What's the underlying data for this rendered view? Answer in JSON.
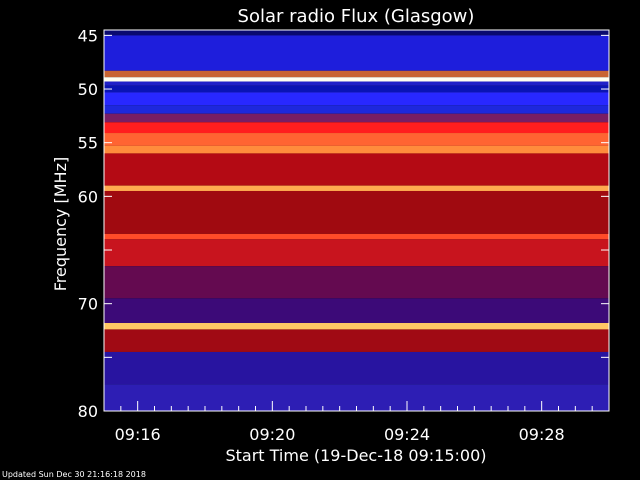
{
  "chart_data": {
    "type": "heatmap",
    "title": "Solar radio Flux (Glasgow)",
    "xlabel": "Start Time (19-Dec-18 09:15:00)",
    "ylabel": "Frequency [MHz]",
    "y_ticks": [
      45,
      50,
      55,
      60,
      65,
      70,
      75,
      80
    ],
    "y_tick_labels": [
      "45",
      "50",
      "55",
      "60",
      "",
      "70",
      "",
      "80"
    ],
    "ylim": [
      44.5,
      80
    ],
    "x_ticks": [
      "09:16",
      "09:20",
      "09:24",
      "09:28"
    ],
    "x_tick_minutes": [
      16,
      20,
      24,
      28
    ],
    "xlim_minutes": [
      15,
      30
    ],
    "bands": [
      {
        "from": 44.5,
        "to": 45.0,
        "color": "#0a0a70"
      },
      {
        "from": 45.0,
        "to": 48.3,
        "color": "#1e1edc"
      },
      {
        "from": 48.3,
        "to": 48.9,
        "color": "#c86432"
      },
      {
        "from": 48.9,
        "to": 49.3,
        "color": "#fffff0"
      },
      {
        "from": 49.3,
        "to": 49.7,
        "color": "#2020c8"
      },
      {
        "from": 49.7,
        "to": 50.3,
        "color": "#0a14b4"
      },
      {
        "from": 50.3,
        "to": 51.5,
        "color": "#2828ff"
      },
      {
        "from": 51.5,
        "to": 52.3,
        "color": "#1e28dc"
      },
      {
        "from": 52.3,
        "to": 53.1,
        "color": "#781e64"
      },
      {
        "from": 53.1,
        "to": 54.1,
        "color": "#ff1e1e"
      },
      {
        "from": 54.1,
        "to": 55.3,
        "color": "#ff6432"
      },
      {
        "from": 55.3,
        "to": 56.0,
        "color": "#ff8c3c"
      },
      {
        "from": 56.0,
        "to": 59.0,
        "color": "#b40a14"
      },
      {
        "from": 59.0,
        "to": 59.5,
        "color": "#ffaa50"
      },
      {
        "from": 59.5,
        "to": 63.5,
        "color": "#a00a10"
      },
      {
        "from": 63.5,
        "to": 64.0,
        "color": "#ff4b28"
      },
      {
        "from": 64.0,
        "to": 66.5,
        "color": "#c8141e"
      },
      {
        "from": 66.5,
        "to": 69.5,
        "color": "#640a50"
      },
      {
        "from": 69.5,
        "to": 71.8,
        "color": "#3c0a78"
      },
      {
        "from": 71.8,
        "to": 72.4,
        "color": "#ffc864"
      },
      {
        "from": 72.4,
        "to": 74.5,
        "color": "#a00a14"
      },
      {
        "from": 74.5,
        "to": 77.5,
        "color": "#2814a0"
      },
      {
        "from": 77.5,
        "to": 80.0,
        "color": "#2d1eb4"
      }
    ],
    "grid": false,
    "legend": "none"
  },
  "footer": "Updated Sun Dec 30 21:16:18 2018",
  "colors": {
    "background": "#000000",
    "axis": "#ffffff",
    "text": "#ffffff"
  }
}
